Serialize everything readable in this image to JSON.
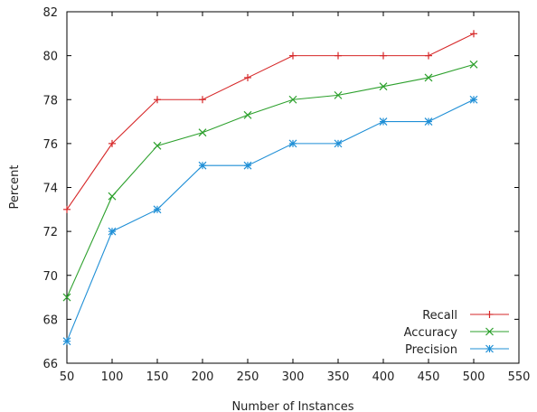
{
  "chart_data": {
    "type": "line",
    "xlabel": "Number of Instances",
    "ylabel": "Percent",
    "xlim": [
      50,
      550
    ],
    "ylim": [
      66,
      82
    ],
    "xticks": [
      50,
      100,
      150,
      200,
      250,
      300,
      350,
      400,
      450,
      500,
      550
    ],
    "yticks": [
      66,
      68,
      70,
      72,
      74,
      76,
      78,
      80,
      82
    ],
    "grid": false,
    "legend_position": "bottom-right",
    "x": [
      50,
      100,
      150,
      200,
      250,
      300,
      350,
      400,
      450,
      500
    ],
    "series": [
      {
        "name": "Recall",
        "color": "#d62728",
        "marker": "plus",
        "values": [
          73,
          76,
          78,
          78,
          79,
          80,
          80,
          80,
          80,
          81
        ]
      },
      {
        "name": "Accuracy",
        "color": "#2ca02c",
        "marker": "x",
        "values": [
          69,
          73.6,
          75.9,
          76.5,
          77.3,
          78.0,
          78.2,
          78.6,
          79.0,
          79.6
        ]
      },
      {
        "name": "Precision",
        "color": "#1f8fd6",
        "marker": "star",
        "values": [
          67,
          72,
          73,
          75,
          75,
          76,
          76,
          77,
          77,
          78
        ]
      }
    ]
  }
}
